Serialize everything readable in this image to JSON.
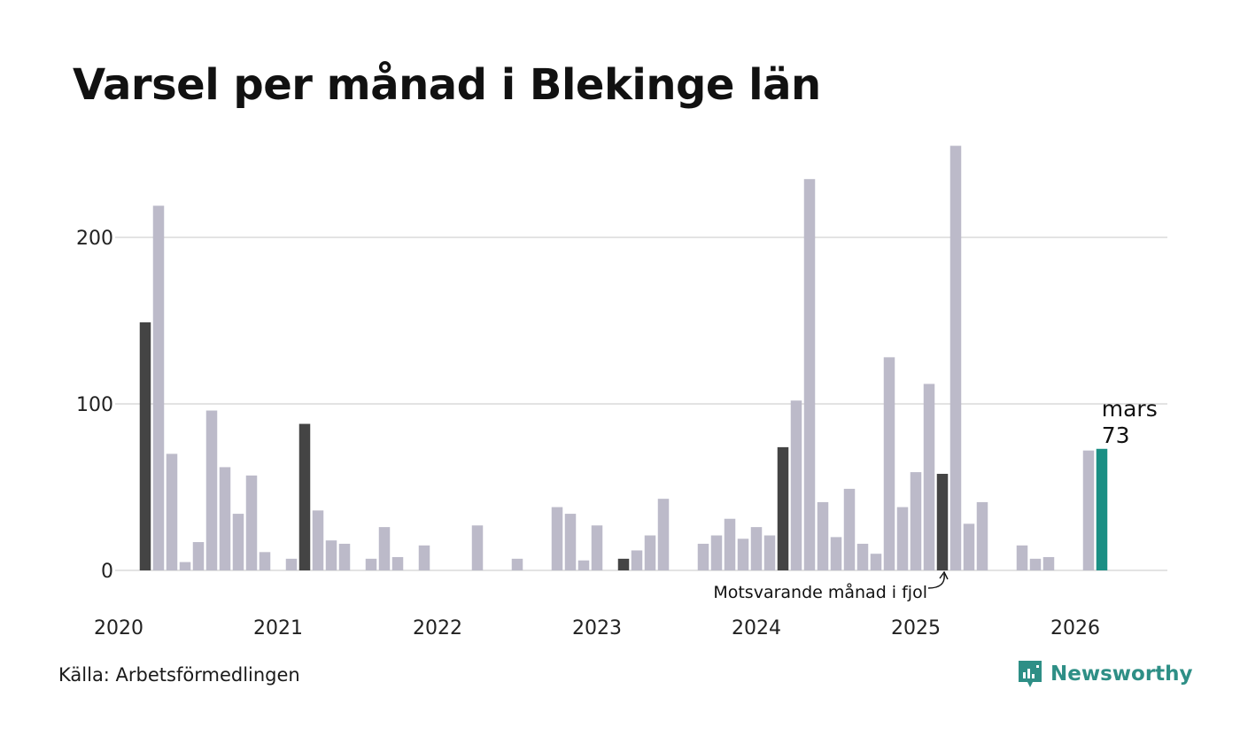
{
  "title": "Varsel per månad i Blekinge län",
  "source": "Källa: Arbetsförmedlingen",
  "brand": "Newsworthy",
  "colors": {
    "bar_default": "#bcbac9",
    "bar_same_month": "#444444",
    "bar_current": "#1a8f84",
    "gridline": "#e3e3e3",
    "brand": "#2e8f86"
  },
  "chart_data": {
    "type": "bar",
    "title": "Varsel per månad i Blekinge län",
    "xlabel": "",
    "ylabel": "",
    "ylim": [
      0,
      255
    ],
    "yticks": [
      0,
      100,
      200
    ],
    "year_labels": [
      "2020",
      "2021",
      "2022",
      "2023",
      "2024",
      "2025",
      "2026"
    ],
    "start": "2020-01",
    "values": [
      0,
      0,
      149,
      219,
      70,
      5,
      17,
      96,
      62,
      34,
      57,
      11,
      0,
      7,
      88,
      36,
      18,
      16,
      0,
      7,
      26,
      8,
      0,
      15,
      0,
      0,
      0,
      27,
      0,
      0,
      7,
      0,
      0,
      38,
      34,
      6,
      27,
      0,
      7,
      12,
      21,
      43,
      0,
      0,
      16,
      21,
      31,
      19,
      26,
      21,
      74,
      102,
      235,
      41,
      20,
      49,
      16,
      10,
      128,
      38,
      59,
      112,
      58,
      255,
      28,
      41,
      0,
      0,
      15,
      7,
      8,
      0,
      0,
      72,
      73
    ],
    "highlight_same_month": [
      2,
      14,
      38,
      50,
      62
    ],
    "highlight_current": 74,
    "current_label": {
      "month": "mars",
      "value": "73"
    },
    "annotation": {
      "text": "Motsvarande månad i fjol",
      "index": 62
    }
  }
}
